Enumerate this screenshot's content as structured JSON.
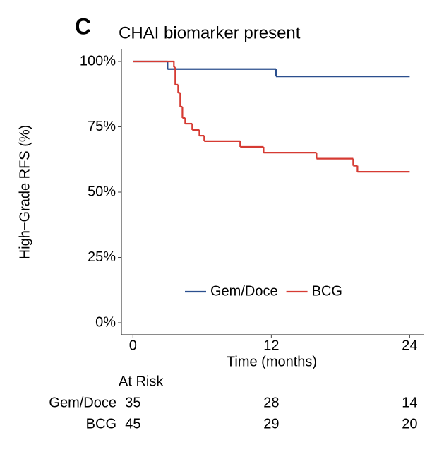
{
  "panel_label": "C",
  "chart_data": {
    "type": "step",
    "title": "CHAI biomarker present",
    "x_label": "Time (months)",
    "y_label": "High−Grade RFS (%)",
    "xlim": [
      -1,
      25.2
    ],
    "xticks": [
      0,
      12,
      24
    ],
    "ylim": [
      -4.6,
      104.6
    ],
    "yticks": [
      {
        "value": 0,
        "label": "0%"
      },
      {
        "value": 25,
        "label": "25%"
      },
      {
        "value": 50,
        "label": "50%"
      },
      {
        "value": 75,
        "label": "75%"
      },
      {
        "value": 100,
        "label": "100%"
      }
    ],
    "legend": "inside-bottom",
    "series": [
      {
        "name": "Gem/Doce",
        "color": "#2b4f8e",
        "x": [
          0,
          3,
          12.4,
          24
        ],
        "values": [
          100,
          97.1,
          94.3,
          94.3
        ]
      },
      {
        "name": "BCG",
        "color": "#d63b33",
        "x": [
          0,
          3.55,
          3.67,
          3.92,
          4.1,
          4.29,
          4.53,
          5.14,
          5.76,
          6.18,
          9.3,
          11.33,
          15.92,
          19.1,
          19.47,
          24
        ],
        "values": [
          100,
          97.8,
          91.1,
          88,
          82.7,
          78.4,
          76.2,
          73.8,
          71.6,
          69.5,
          67.3,
          65.1,
          62.8,
          60.1,
          57.8,
          57.8
        ]
      }
    ]
  },
  "risk_table": {
    "title": "At Risk",
    "rows": [
      {
        "name": "Gem/Doce",
        "values": [
          35,
          28,
          14
        ]
      },
      {
        "name": "BCG",
        "values": [
          45,
          29,
          20
        ]
      }
    ]
  }
}
